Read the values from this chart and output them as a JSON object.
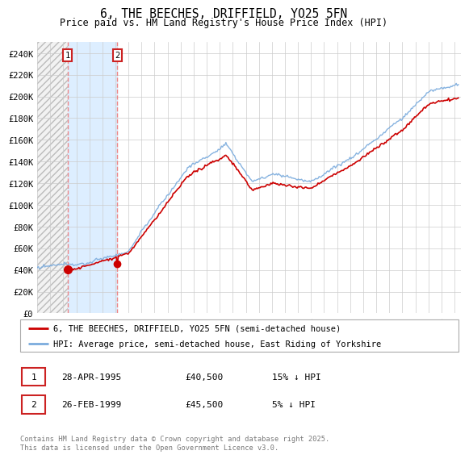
{
  "title": "6, THE BEECHES, DRIFFIELD, YO25 5FN",
  "subtitle": "Price paid vs. HM Land Registry's House Price Index (HPI)",
  "ylabel_ticks": [
    "£0",
    "£20K",
    "£40K",
    "£60K",
    "£80K",
    "£100K",
    "£120K",
    "£140K",
    "£160K",
    "£180K",
    "£200K",
    "£220K",
    "£240K"
  ],
  "ytick_values": [
    0,
    20000,
    40000,
    60000,
    80000,
    100000,
    120000,
    140000,
    160000,
    180000,
    200000,
    220000,
    240000
  ],
  "ylim": [
    0,
    250000
  ],
  "sale1_year": 1995.32,
  "sale1_price": 40500,
  "sale2_year": 1999.15,
  "sale2_price": 45500,
  "legend_line1": "6, THE BEECHES, DRIFFIELD, YO25 5FN (semi-detached house)",
  "legend_line2": "HPI: Average price, semi-detached house, East Riding of Yorkshire",
  "footer": "Contains HM Land Registry data © Crown copyright and database right 2025.\nThis data is licensed under the Open Government Licence v3.0.",
  "price_line_color": "#cc0000",
  "hpi_line_color": "#7aabdd",
  "sale_vline_color": "#ee8888",
  "highlight_color": "#ddeeff",
  "hatch_color": "#e0e0e0"
}
